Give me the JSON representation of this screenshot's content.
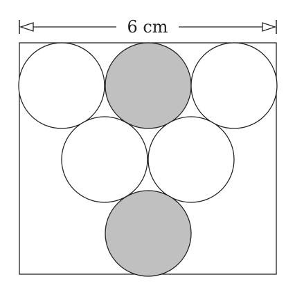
{
  "diagram": {
    "dimension_label": "6 cm",
    "colors": {
      "stroke": "#222222",
      "shaded": "#c0c0c0",
      "unshaded": "#ffffff",
      "background": "#ffffff"
    },
    "circles": [
      {
        "name": "circle-top-left",
        "row": "top",
        "shaded": false
      },
      {
        "name": "circle-top-middle",
        "row": "top",
        "shaded": true
      },
      {
        "name": "circle-top-right",
        "row": "top",
        "shaded": false
      },
      {
        "name": "circle-middle-left",
        "row": "middle",
        "shaded": false
      },
      {
        "name": "circle-middle-right",
        "row": "middle",
        "shaded": false
      },
      {
        "name": "circle-bottom",
        "row": "bottom",
        "shaded": true
      }
    ]
  }
}
